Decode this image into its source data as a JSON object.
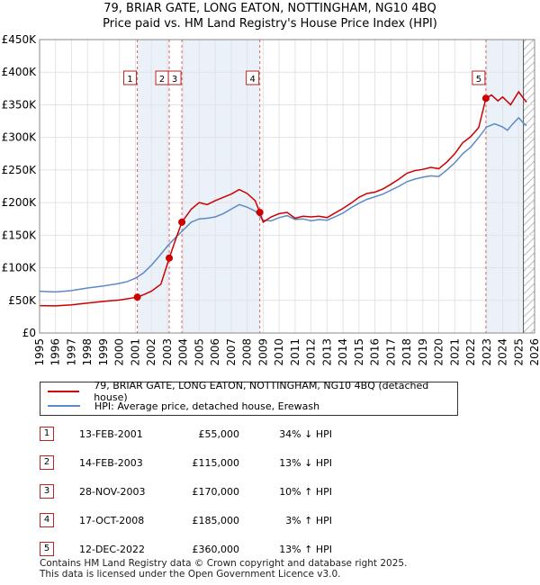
{
  "title_line1": "79, BRIAR GATE, LONG EATON, NOTTINGHAM, NG10 4BQ",
  "title_line2": "Price paid vs. HM Land Registry's House Price Index (HPI)",
  "chart_data": {
    "type": "line",
    "xlim": [
      1995,
      2026
    ],
    "ylim": [
      0,
      450000
    ],
    "x_ticks": [
      1995,
      1996,
      1997,
      1998,
      1999,
      2000,
      2001,
      2002,
      2003,
      2004,
      2005,
      2006,
      2007,
      2008,
      2009,
      2010,
      2011,
      2012,
      2013,
      2014,
      2015,
      2016,
      2017,
      2018,
      2019,
      2020,
      2021,
      2022,
      2023,
      2024,
      2025,
      2026
    ],
    "y_ticks": [
      0,
      50000,
      100000,
      150000,
      200000,
      250000,
      300000,
      350000,
      400000,
      450000
    ],
    "y_tick_labels": [
      "£0",
      "£50K",
      "£100K",
      "£150K",
      "£200K",
      "£250K",
      "£300K",
      "£350K",
      "£400K",
      "£450K"
    ],
    "forecast_start": 2025.3,
    "series": [
      {
        "name": "79, BRIAR GATE, LONG EATON, NOTTINGHAM, NG10 4BQ (detached house)",
        "color": "#cc0000",
        "points": [
          [
            1995,
            42000
          ],
          [
            1996,
            41500
          ],
          [
            1997,
            43000
          ],
          [
            1998,
            46000
          ],
          [
            1999,
            48500
          ],
          [
            2000,
            50500
          ],
          [
            2001.12,
            55000
          ],
          [
            2001.5,
            58500
          ],
          [
            2002,
            64000
          ],
          [
            2002.6,
            75000
          ],
          [
            2003.12,
            115000
          ],
          [
            2003.5,
            142000
          ],
          [
            2003.91,
            170000
          ],
          [
            2004.5,
            190000
          ],
          [
            2005,
            200000
          ],
          [
            2005.5,
            197000
          ],
          [
            2006,
            203000
          ],
          [
            2006.5,
            208000
          ],
          [
            2007,
            213000
          ],
          [
            2007.5,
            220000
          ],
          [
            2008,
            214000
          ],
          [
            2008.5,
            203000
          ],
          [
            2008.79,
            185000
          ],
          [
            2009,
            170000
          ],
          [
            2009.5,
            178000
          ],
          [
            2010,
            183000
          ],
          [
            2010.5,
            185000
          ],
          [
            2011,
            176000
          ],
          [
            2011.5,
            179000
          ],
          [
            2012,
            178000
          ],
          [
            2012.5,
            179000
          ],
          [
            2013,
            177000
          ],
          [
            2013.5,
            184000
          ],
          [
            2014,
            191000
          ],
          [
            2014.5,
            199000
          ],
          [
            2015,
            208000
          ],
          [
            2015.5,
            214000
          ],
          [
            2016,
            216000
          ],
          [
            2016.5,
            221000
          ],
          [
            2017,
            228000
          ],
          [
            2017.5,
            236000
          ],
          [
            2018,
            245000
          ],
          [
            2018.5,
            249000
          ],
          [
            2019,
            251000
          ],
          [
            2019.5,
            254000
          ],
          [
            2020,
            252000
          ],
          [
            2020.5,
            262000
          ],
          [
            2021,
            275000
          ],
          [
            2021.5,
            292000
          ],
          [
            2022,
            301000
          ],
          [
            2022.5,
            315000
          ],
          [
            2022.95,
            360000
          ],
          [
            2023.3,
            365000
          ],
          [
            2023.7,
            356000
          ],
          [
            2024,
            362000
          ],
          [
            2024.5,
            350000
          ],
          [
            2025,
            370000
          ],
          [
            2025.3,
            360000
          ],
          [
            2025.5,
            354000
          ]
        ]
      },
      {
        "name": "HPI: Average price, detached house, Erewash",
        "color": "#5b8ac9",
        "points": [
          [
            1995,
            64000
          ],
          [
            1996,
            63000
          ],
          [
            1997,
            65000
          ],
          [
            1998,
            69000
          ],
          [
            1999,
            72000
          ],
          [
            2000,
            76000
          ],
          [
            2000.5,
            79000
          ],
          [
            2001,
            84000
          ],
          [
            2001.5,
            92000
          ],
          [
            2002,
            104000
          ],
          [
            2002.5,
            118000
          ],
          [
            2003,
            133000
          ],
          [
            2003.5,
            146000
          ],
          [
            2004,
            158000
          ],
          [
            2004.5,
            170000
          ],
          [
            2005,
            175000
          ],
          [
            2005.5,
            176000
          ],
          [
            2006,
            178000
          ],
          [
            2006.5,
            183000
          ],
          [
            2007,
            190000
          ],
          [
            2007.5,
            197000
          ],
          [
            2008,
            193000
          ],
          [
            2008.5,
            187000
          ],
          [
            2009,
            173000
          ],
          [
            2009.5,
            172000
          ],
          [
            2010,
            177000
          ],
          [
            2010.5,
            180000
          ],
          [
            2011,
            174000
          ],
          [
            2011.5,
            175000
          ],
          [
            2012,
            172000
          ],
          [
            2012.5,
            174000
          ],
          [
            2013,
            173000
          ],
          [
            2013.5,
            178000
          ],
          [
            2014,
            184000
          ],
          [
            2014.5,
            192000
          ],
          [
            2015,
            199000
          ],
          [
            2015.5,
            205000
          ],
          [
            2016,
            209000
          ],
          [
            2016.5,
            213000
          ],
          [
            2017,
            219000
          ],
          [
            2017.5,
            225000
          ],
          [
            2018,
            232000
          ],
          [
            2018.5,
            236000
          ],
          [
            2019,
            239000
          ],
          [
            2019.5,
            241000
          ],
          [
            2020,
            240000
          ],
          [
            2020.5,
            250000
          ],
          [
            2021,
            261000
          ],
          [
            2021.5,
            275000
          ],
          [
            2022,
            285000
          ],
          [
            2022.5,
            300000
          ],
          [
            2023,
            316000
          ],
          [
            2023.5,
            321000
          ],
          [
            2024,
            316000
          ],
          [
            2024.3,
            311000
          ],
          [
            2024.6,
            320000
          ],
          [
            2025,
            330000
          ],
          [
            2025.3,
            322000
          ],
          [
            2025.5,
            318000
          ]
        ]
      }
    ],
    "sales": [
      {
        "num": "1",
        "x": 2001.12,
        "price": 55000
      },
      {
        "num": "2",
        "x": 2003.12,
        "price": 115000
      },
      {
        "num": "3",
        "x": 2003.91,
        "price": 170000
      },
      {
        "num": "4",
        "x": 2008.79,
        "price": 185000
      },
      {
        "num": "5",
        "x": 2022.95,
        "price": 360000
      }
    ],
    "vlines": [
      2001.12,
      2003.12,
      2003.91,
      2008.79,
      2022.95
    ],
    "shaded_ranges": [
      [
        2001.12,
        2003.12
      ],
      [
        2003.91,
        2008.79
      ],
      [
        2022.95,
        2025.3
      ]
    ]
  },
  "legend": {
    "property_label": "79, BRIAR GATE, LONG EATON, NOTTINGHAM, NG10 4BQ (detached house)",
    "hpi_label": "HPI: Average price, detached house, Erewash",
    "property_color": "#cc0000",
    "hpi_color": "#5b8ac9"
  },
  "table": [
    {
      "num": "1",
      "date": "13-FEB-2001",
      "price": "£55,000",
      "hpi": "34% ↓ HPI"
    },
    {
      "num": "2",
      "date": "14-FEB-2003",
      "price": "£115,000",
      "hpi": "13% ↓ HPI"
    },
    {
      "num": "3",
      "date": "28-NOV-2003",
      "price": "£170,000",
      "hpi": "10% ↑ HPI"
    },
    {
      "num": "4",
      "date": "17-OCT-2008",
      "price": "£185,000",
      "hpi": "3% ↑ HPI"
    },
    {
      "num": "5",
      "date": "12-DEC-2022",
      "price": "£360,000",
      "hpi": "13% ↑ HPI"
    }
  ],
  "footer_line1": "Contains HM Land Registry data © Crown copyright and database right 2025.",
  "footer_line2": "This data is licensed under the Open Government Licence v3.0."
}
